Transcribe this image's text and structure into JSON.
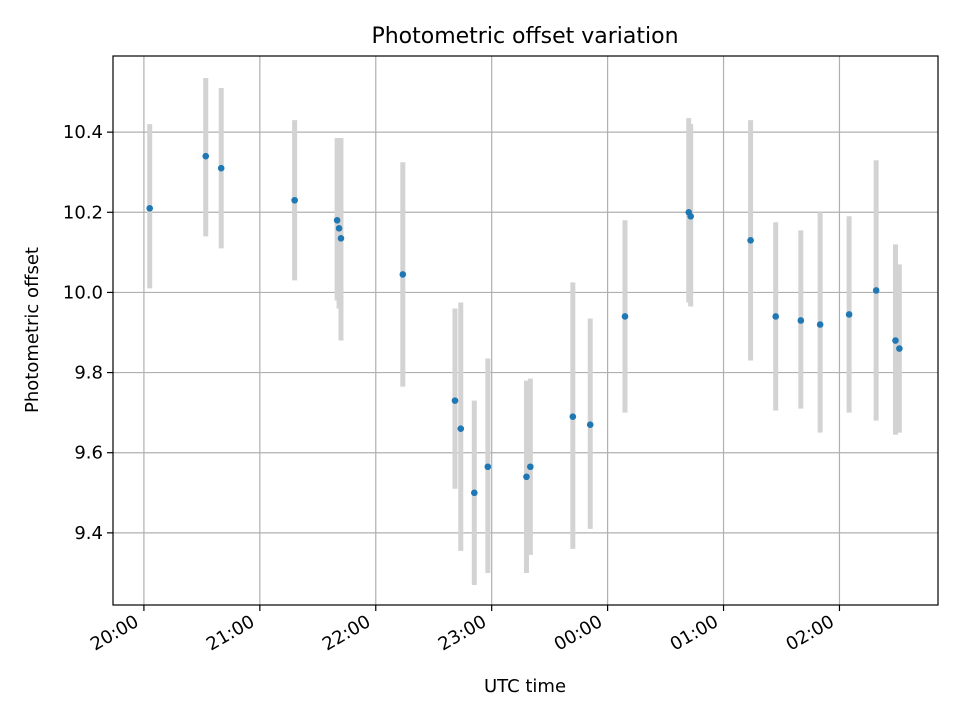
{
  "chart_data": {
    "type": "scatter",
    "title": "Photometric offset variation",
    "xlabel": "UTC time",
    "ylabel": "Photometric offset",
    "xlim": [
      "19:44",
      "02:51"
    ],
    "ylim": [
      9.22,
      10.59
    ],
    "grid": true,
    "x_ticks": [
      "20:00",
      "21:00",
      "22:00",
      "23:00",
      "00:00",
      "01:00",
      "02:00"
    ],
    "y_ticks": [
      9.4,
      9.6,
      9.8,
      10.0,
      10.2,
      10.4
    ],
    "y_tick_labels": [
      "9.4",
      "9.6",
      "9.8",
      "10.0",
      "10.2",
      "10.4"
    ],
    "marker_color": "#1f77b4",
    "errorbar_color": "#d3d3d3",
    "points": [
      {
        "t": "20:03",
        "y": 10.21,
        "ylo": 10.01,
        "yhi": 10.42
      },
      {
        "t": "20:32",
        "y": 10.34,
        "ylo": 10.14,
        "yhi": 10.535
      },
      {
        "t": "20:40",
        "y": 10.31,
        "ylo": 10.11,
        "yhi": 10.51
      },
      {
        "t": "21:18",
        "y": 10.23,
        "ylo": 10.03,
        "yhi": 10.43
      },
      {
        "t": "21:40",
        "y": 10.18,
        "ylo": 9.98,
        "yhi": 10.385
      },
      {
        "t": "21:41",
        "y": 10.16,
        "ylo": 9.96,
        "yhi": 10.385
      },
      {
        "t": "21:42",
        "y": 10.135,
        "ylo": 9.88,
        "yhi": 10.385
      },
      {
        "t": "22:14",
        "y": 10.045,
        "ylo": 9.765,
        "yhi": 10.325
      },
      {
        "t": "22:41",
        "y": 9.73,
        "ylo": 9.51,
        "yhi": 9.96
      },
      {
        "t": "22:44",
        "y": 9.66,
        "ylo": 9.355,
        "yhi": 9.975
      },
      {
        "t": "22:51",
        "y": 9.5,
        "ylo": 9.27,
        "yhi": 9.73
      },
      {
        "t": "22:58",
        "y": 9.565,
        "ylo": 9.3,
        "yhi": 9.835
      },
      {
        "t": "23:18",
        "y": 9.54,
        "ylo": 9.3,
        "yhi": 9.78
      },
      {
        "t": "23:20",
        "y": 9.565,
        "ylo": 9.345,
        "yhi": 9.785
      },
      {
        "t": "23:42",
        "y": 9.69,
        "ylo": 9.36,
        "yhi": 10.025
      },
      {
        "t": "23:51",
        "y": 9.67,
        "ylo": 9.41,
        "yhi": 9.935
      },
      {
        "t": "00:09",
        "y": 9.94,
        "ylo": 9.7,
        "yhi": 10.18
      },
      {
        "t": "00:42",
        "y": 10.2,
        "ylo": 9.975,
        "yhi": 10.435
      },
      {
        "t": "00:43",
        "y": 10.19,
        "ylo": 9.965,
        "yhi": 10.42
      },
      {
        "t": "01:14",
        "y": 10.13,
        "ylo": 9.83,
        "yhi": 10.43
      },
      {
        "t": "01:27",
        "y": 9.94,
        "ylo": 9.705,
        "yhi": 10.175
      },
      {
        "t": "01:40",
        "y": 9.93,
        "ylo": 9.71,
        "yhi": 10.155
      },
      {
        "t": "01:50",
        "y": 9.92,
        "ylo": 9.65,
        "yhi": 10.2
      },
      {
        "t": "02:05",
        "y": 9.945,
        "ylo": 9.7,
        "yhi": 10.19
      },
      {
        "t": "02:19",
        "y": 10.005,
        "ylo": 9.68,
        "yhi": 10.33
      },
      {
        "t": "02:29",
        "y": 9.88,
        "ylo": 9.645,
        "yhi": 10.12
      },
      {
        "t": "02:31",
        "y": 9.86,
        "ylo": 9.65,
        "yhi": 10.07
      }
    ]
  }
}
